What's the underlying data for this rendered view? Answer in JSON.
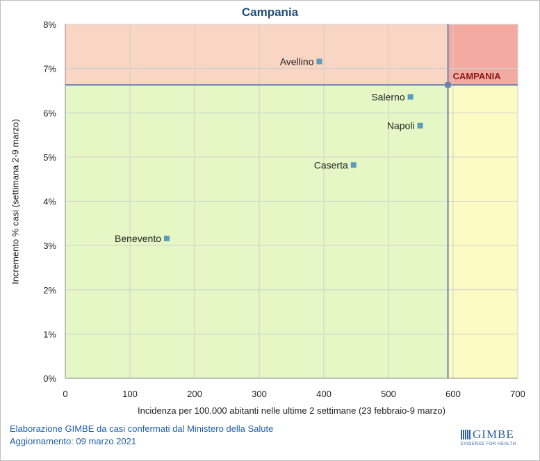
{
  "chart_data": {
    "type": "scatter",
    "title": "Campania",
    "xlabel": "Incidenza per 100.000 abitanti nelle ultime 2 settimane (23 febbraio-9 marzo)",
    "ylabel": "Incremento % casi (settimana 2-9 marzo)",
    "xlim": [
      0,
      700
    ],
    "ylim": [
      0,
      8
    ],
    "x_ticks": [
      0,
      100,
      200,
      300,
      400,
      500,
      600,
      700
    ],
    "y_ticks": [
      0,
      1,
      2,
      3,
      4,
      5,
      6,
      7,
      8
    ],
    "y_tick_labels": [
      "0%",
      "1%",
      "2%",
      "3%",
      "4%",
      "5%",
      "6%",
      "7%",
      "8%"
    ],
    "grid": true,
    "reference": {
      "name": "CAMPANIA",
      "x": 592,
      "y": 6.63
    },
    "points": [
      {
        "name": "Avellino",
        "x": 393,
        "y": 7.16
      },
      {
        "name": "Salerno",
        "x": 534,
        "y": 6.36
      },
      {
        "name": "Napoli",
        "x": 549,
        "y": 5.71
      },
      {
        "name": "Caserta",
        "x": 446,
        "y": 4.82
      },
      {
        "name": "Benevento",
        "x": 157,
        "y": 3.16
      }
    ],
    "quadrant_colors": {
      "top_left": "#f9d5c3",
      "top_right": "#f4aaa1",
      "bottom_left": "#e5f7c5",
      "bottom_right": "#fdfbc4"
    },
    "marker_color": "#5b9bbd",
    "reference_color": "#6a82b0",
    "label_color": "#8b1a1a"
  },
  "footer": {
    "line1": "Elaborazione GIMBE da casi confermati dal Ministero della Salute",
    "line2": "Aggiornamento: 09 marzo 2021"
  },
  "logo": {
    "name": "GIMBE",
    "tagline": "EVIDENCE FOR HEALTH"
  }
}
